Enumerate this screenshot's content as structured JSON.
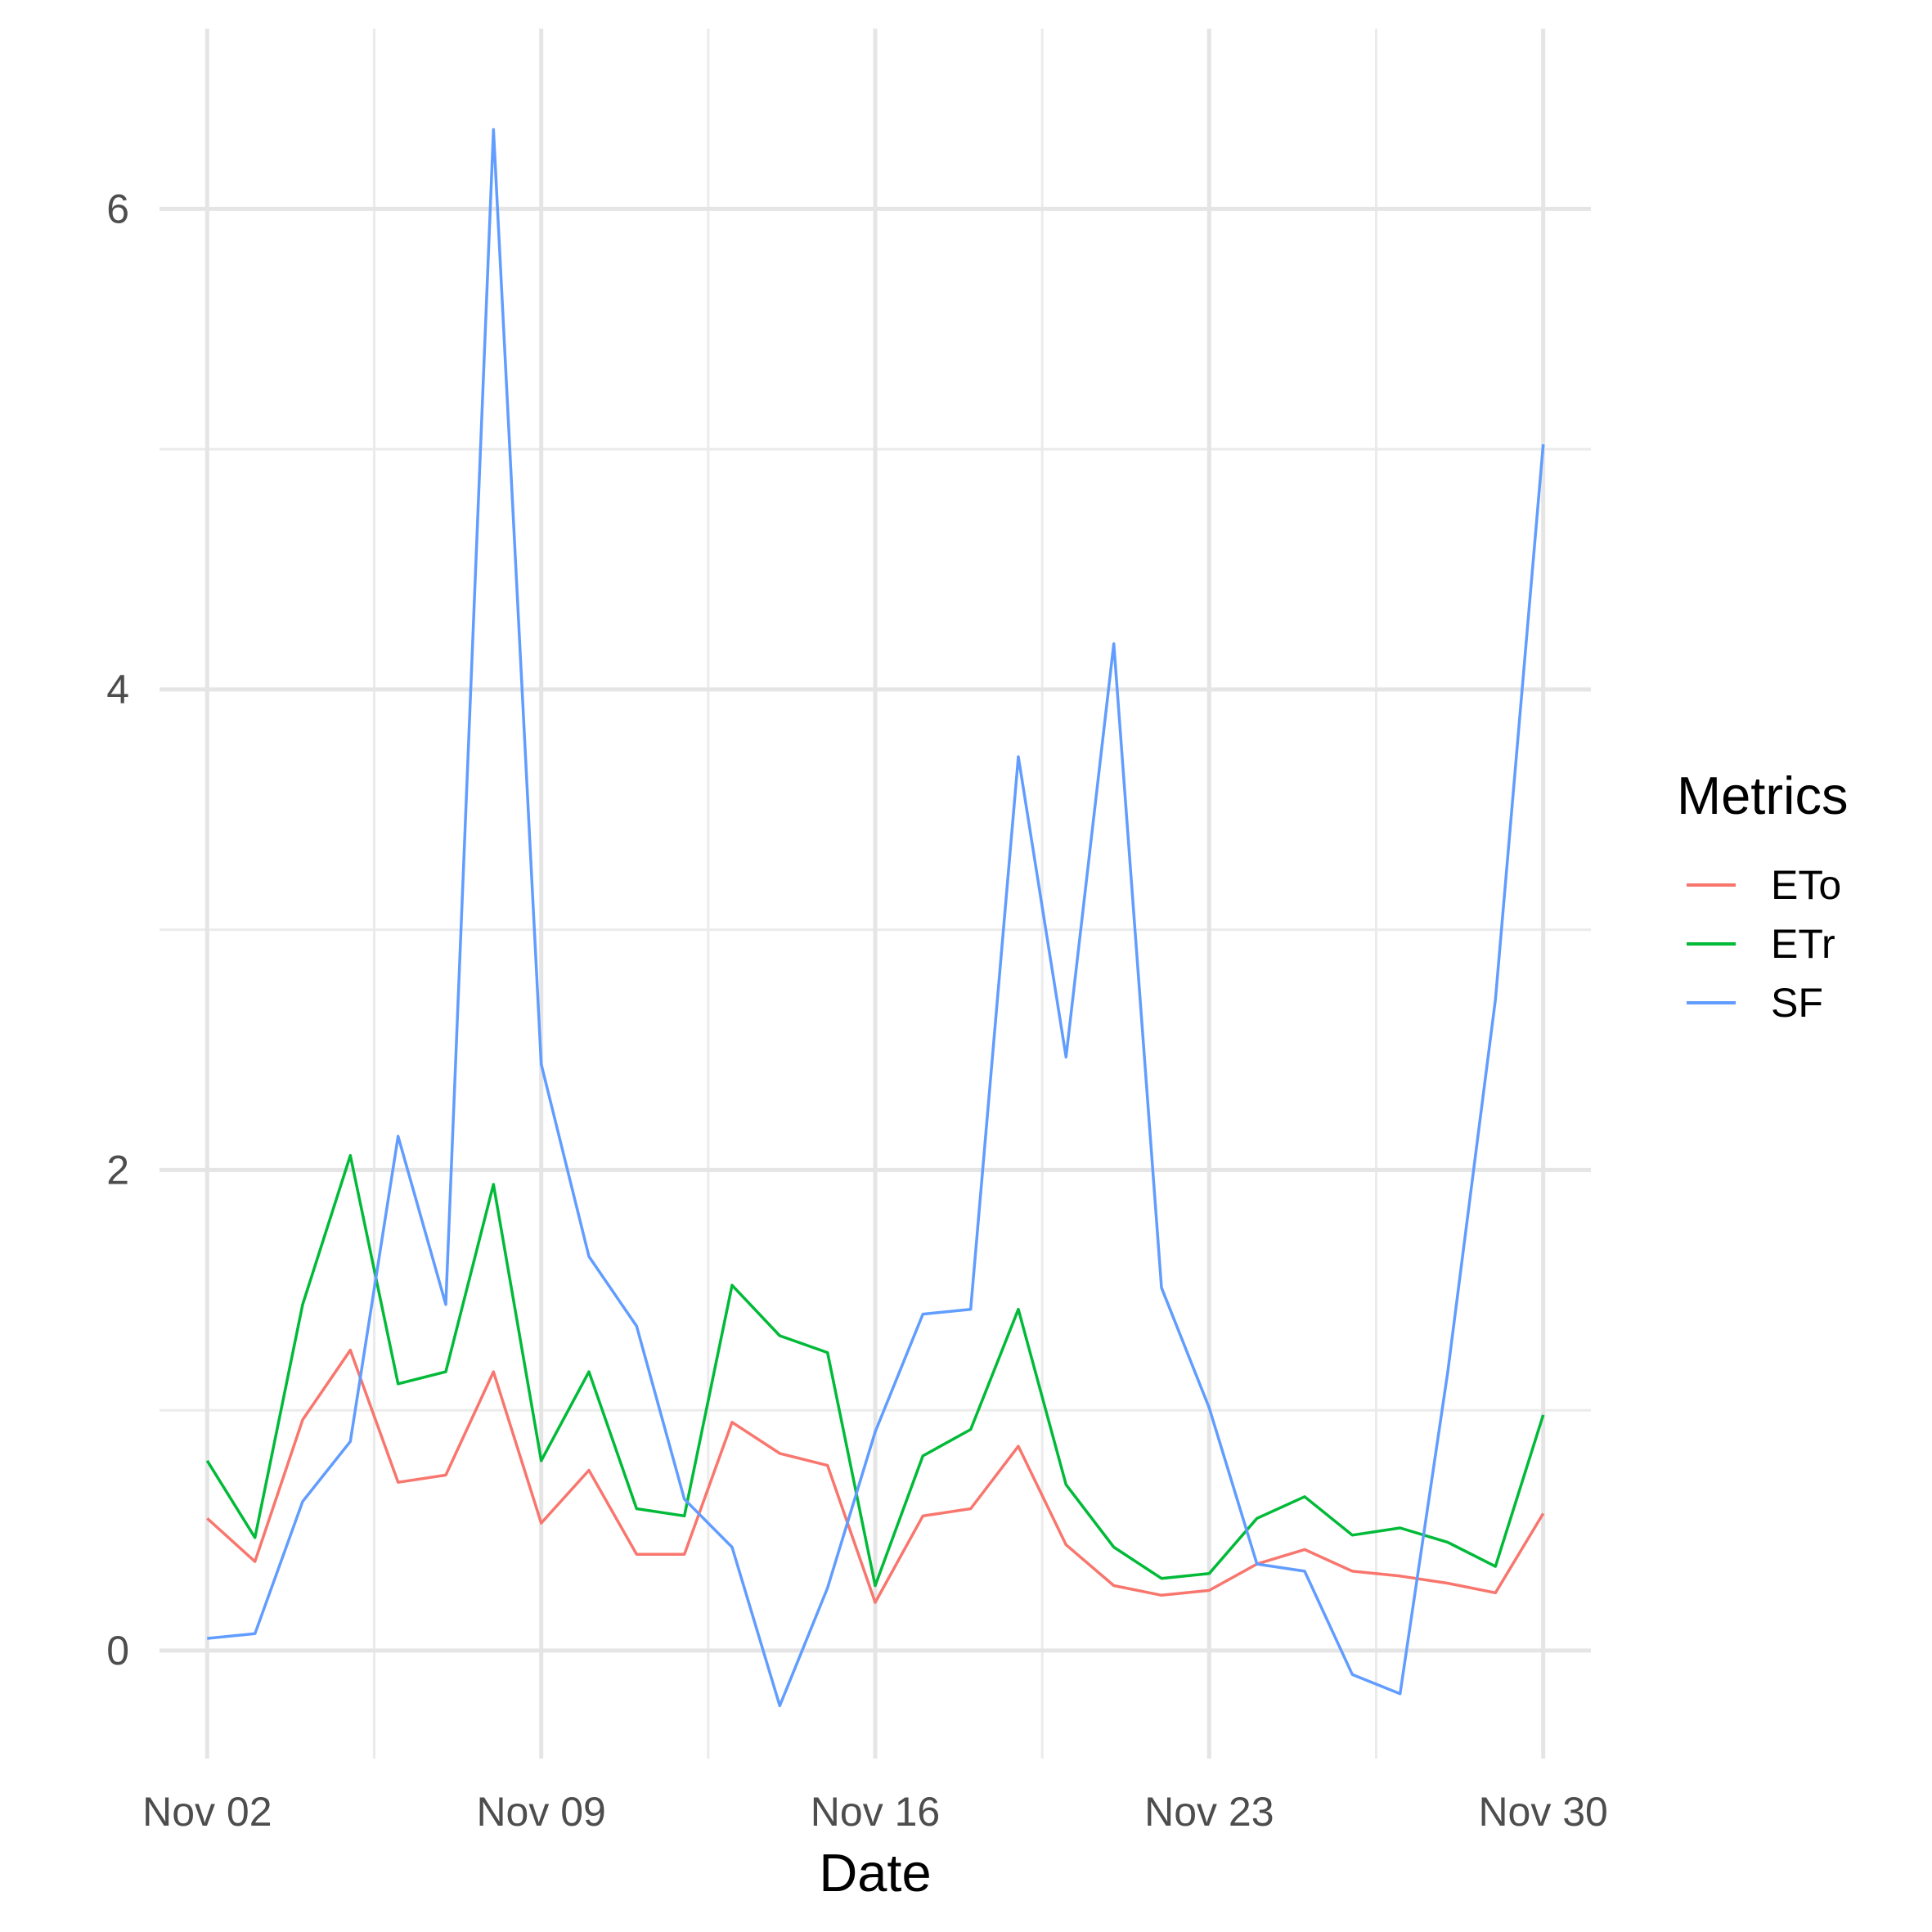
{
  "chart_data": {
    "type": "line",
    "xlabel": "Date",
    "ylabel": "",
    "x": [
      "2023-11-02",
      "2023-11-03",
      "2023-11-04",
      "2023-11-05",
      "2023-11-06",
      "2023-11-07",
      "2023-11-08",
      "2023-11-09",
      "2023-11-10",
      "2023-11-11",
      "2023-11-12",
      "2023-11-13",
      "2023-11-14",
      "2023-11-15",
      "2023-11-16",
      "2023-11-17",
      "2023-11-18",
      "2023-11-19",
      "2023-11-20",
      "2023-11-21",
      "2023-11-22",
      "2023-11-23",
      "2023-11-24",
      "2023-11-25",
      "2023-11-26",
      "2023-11-27",
      "2023-11-28",
      "2023-11-29",
      "2023-11-30"
    ],
    "xlim": [
      "2023-11-01",
      "2023-12-01"
    ],
    "x_ticks": [
      "Nov 02",
      "Nov 09",
      "Nov 16",
      "Nov 23",
      "Nov 30"
    ],
    "ylim": [
      -0.45,
      6.75
    ],
    "y_ticks": [
      "0",
      "2",
      "4",
      "6"
    ],
    "legend": {
      "title": "Metrics",
      "position": "right"
    },
    "grid": true,
    "series": [
      {
        "name": "ETo",
        "color": "#F8766D",
        "values": [
          0.55,
          0.37,
          0.96,
          1.25,
          0.7,
          0.73,
          1.16,
          0.53,
          0.75,
          0.4,
          0.4,
          0.95,
          0.82,
          0.77,
          0.2,
          0.56,
          0.59,
          0.85,
          0.44,
          0.27,
          0.23,
          0.25,
          0.36,
          0.42,
          0.33,
          0.31,
          0.28,
          0.24,
          0.57
        ]
      },
      {
        "name": "ETr",
        "color": "#00BA38",
        "values": [
          0.79,
          0.47,
          1.44,
          2.06,
          1.11,
          1.16,
          1.94,
          0.79,
          1.16,
          0.59,
          0.56,
          1.52,
          1.31,
          1.24,
          0.27,
          0.81,
          0.92,
          1.42,
          0.69,
          0.43,
          0.3,
          0.32,
          0.55,
          0.64,
          0.48,
          0.51,
          0.45,
          0.35,
          0.98
        ]
      },
      {
        "name": "SF",
        "color": "#619CFF",
        "values": [
          0.05,
          0.07,
          0.62,
          0.87,
          2.14,
          1.44,
          6.33,
          2.44,
          1.64,
          1.35,
          0.63,
          0.43,
          -0.23,
          0.26,
          0.91,
          1.4,
          1.42,
          3.72,
          2.47,
          4.19,
          1.51,
          1.01,
          0.36,
          0.33,
          -0.1,
          -0.18,
          1.16,
          2.71,
          5.02
        ]
      }
    ]
  }
}
